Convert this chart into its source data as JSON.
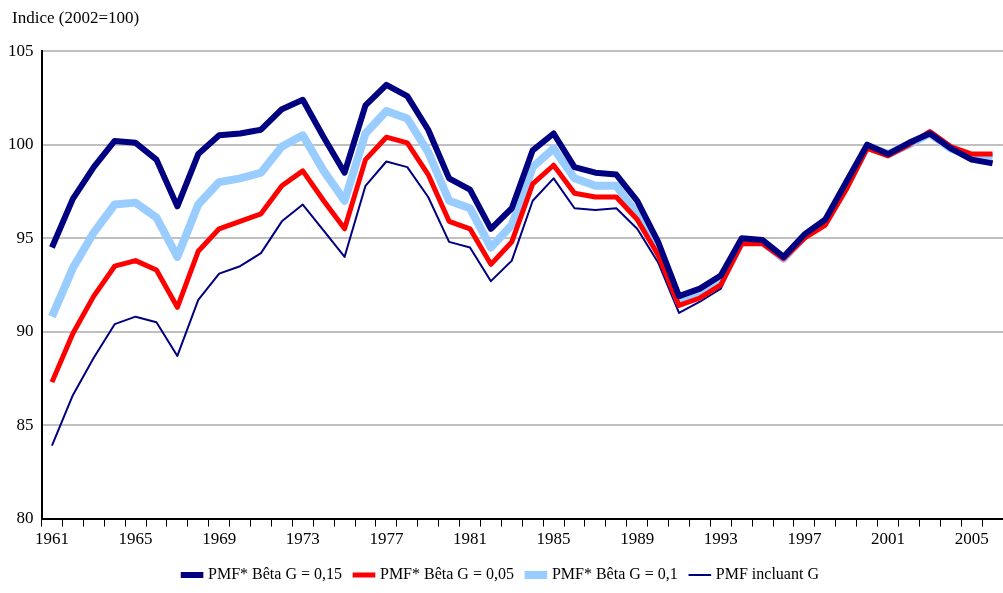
{
  "chart_data": {
    "type": "line",
    "ylabel": "Indice (2002=100)",
    "categories": [
      "1961",
      null,
      null,
      null,
      "1965",
      null,
      null,
      null,
      "1969",
      null,
      null,
      null,
      "1973",
      null,
      null,
      null,
      "1977",
      null,
      null,
      null,
      "1981",
      null,
      null,
      null,
      "1985",
      null,
      null,
      null,
      "1989",
      null,
      null,
      null,
      "1993",
      null,
      null,
      null,
      "1997",
      null,
      null,
      null,
      "2001",
      null,
      null,
      null,
      "2005",
      null
    ],
    "series": [
      {
        "name": "PMF incluant G",
        "color": "#000080",
        "values": [
          83.9,
          86.6,
          88.6,
          90.4,
          90.8,
          90.5,
          88.7,
          91.7,
          93.1,
          93.5,
          94.2,
          95.9,
          96.8,
          95.4,
          94.0,
          97.8,
          99.1,
          98.8,
          97.2,
          94.8,
          94.5,
          92.7,
          93.8,
          97.0,
          98.2,
          96.6,
          96.5,
          96.6,
          95.5,
          93.7,
          91.0,
          91.6,
          92.3,
          94.7,
          94.7,
          93.9,
          95.0,
          95.8,
          97.7,
          99.9,
          99.5,
          100.0,
          100.6,
          99.8,
          99.3,
          99.1
        ]
      },
      {
        "name": "PMF* Bêta G = 0,1",
        "color": "#99ccff",
        "values": [
          90.8,
          93.4,
          95.3,
          96.8,
          96.9,
          96.1,
          94.0,
          96.8,
          98.0,
          98.2,
          98.5,
          99.9,
          100.5,
          98.6,
          97.0,
          100.6,
          101.8,
          101.4,
          99.6,
          97.0,
          96.6,
          94.5,
          95.7,
          98.8,
          99.8,
          98.2,
          97.8,
          97.8,
          96.3,
          94.5,
          91.6,
          92.0,
          92.7,
          94.8,
          94.8,
          93.9,
          95.1,
          95.9,
          97.8,
          99.9,
          99.5,
          100.0,
          100.6,
          99.8,
          99.4,
          99.3
        ]
      },
      {
        "name": "PMF* Bêta G = 0,05",
        "color": "#ff0000",
        "values": [
          87.3,
          89.9,
          91.9,
          93.5,
          93.8,
          93.3,
          91.3,
          94.3,
          95.5,
          95.9,
          96.3,
          97.8,
          98.6,
          97.0,
          95.5,
          99.2,
          100.4,
          100.1,
          98.4,
          95.9,
          95.5,
          93.6,
          94.8,
          97.9,
          98.9,
          97.4,
          97.2,
          97.2,
          96.0,
          94.1,
          91.4,
          91.8,
          92.5,
          94.7,
          94.7,
          93.9,
          95.0,
          95.7,
          97.6,
          99.8,
          99.4,
          100.0,
          100.7,
          99.9,
          99.5,
          99.5
        ]
      },
      {
        "name": "PMF* Bêta G = 0,15",
        "color": "#000080",
        "values": [
          94.5,
          97.1,
          98.8,
          100.2,
          100.1,
          99.2,
          96.7,
          99.5,
          100.5,
          100.6,
          100.8,
          101.9,
          102.4,
          100.4,
          98.5,
          102.1,
          103.2,
          102.6,
          100.8,
          98.2,
          97.6,
          95.5,
          96.6,
          99.7,
          100.6,
          98.8,
          98.5,
          98.4,
          97.0,
          94.8,
          91.9,
          92.3,
          93.0,
          95.0,
          94.9,
          94.0,
          95.2,
          96.0,
          98.0,
          100.0,
          99.5,
          100.1,
          100.6,
          99.8,
          99.2,
          99.0
        ]
      }
    ],
    "ylim": [
      80,
      105
    ],
    "yticks": [
      80,
      85,
      90,
      95,
      100,
      105
    ],
    "grid": "y",
    "legend": "bottom",
    "marker": "none",
    "line_style": "solid"
  }
}
